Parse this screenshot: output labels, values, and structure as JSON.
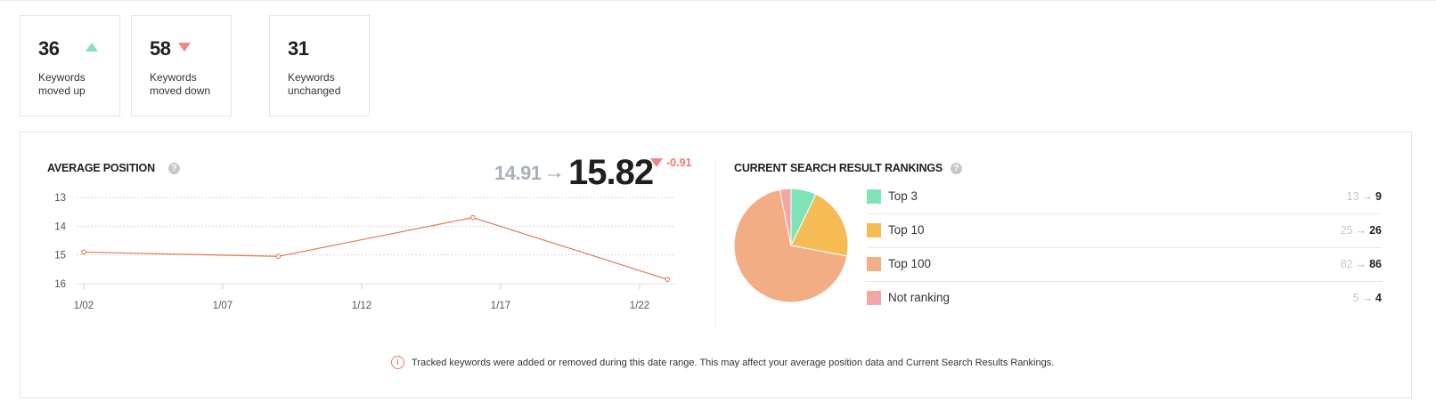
{
  "summary_cards": [
    {
      "value": "36",
      "label": "Keywords moved up",
      "trend": "up",
      "trend_icon": "triangle-up-icon",
      "color": "#7fe3b8"
    },
    {
      "value": "58",
      "label": "Keywords moved down",
      "trend": "down",
      "trend_icon": "triangle-down-icon",
      "color": "#f08585"
    },
    {
      "value": "31",
      "label": "Keywords unchanged",
      "trend": "none"
    }
  ],
  "average_position": {
    "title": "AVERAGE POSITION",
    "help_icon": "question-circle-icon",
    "previous": "14.91",
    "arrow": "→",
    "current": "15.82",
    "delta": "-0.91",
    "delta_icon": "triangle-down-icon",
    "delta_color": "#f07373"
  },
  "chart_data": {
    "type": "line",
    "title": "AVERAGE POSITION",
    "xlabel": "",
    "ylabel": "",
    "x_ticks": [
      "1/02",
      "1/07",
      "1/12",
      "1/17",
      "1/22"
    ],
    "y_ticks": [
      "13",
      "14",
      "15",
      "16"
    ],
    "ylim": [
      16,
      13
    ],
    "y_inverted": true,
    "grid": true,
    "series": [
      {
        "x": [
          "1/02",
          "1/09",
          "1/16",
          "1/23"
        ],
        "values": [
          14.9,
          15.05,
          13.7,
          15.85
        ],
        "color": "#e07a4f"
      }
    ]
  },
  "rankings": {
    "title": "CURRENT SEARCH RESULT RANKINGS",
    "help_icon": "question-circle-icon",
    "pie": [
      {
        "name": "Top 3",
        "value": 9,
        "color": "#7fe3b8"
      },
      {
        "name": "Top 10",
        "value": 26,
        "color": "#f5bb55"
      },
      {
        "name": "Top 100",
        "value": 86,
        "color": "#f2ad85"
      },
      {
        "name": "Not ranking",
        "value": 4,
        "color": "#f2a7a5"
      }
    ],
    "rows": [
      {
        "label": "Top 3",
        "from": "13",
        "arrow": "→",
        "to": "9",
        "color": "#7fe3b8"
      },
      {
        "label": "Top 10",
        "from": "25",
        "arrow": "→",
        "to": "26",
        "color": "#f5bb55"
      },
      {
        "label": "Top 100",
        "from": "82",
        "arrow": "→",
        "to": "86",
        "color": "#f2ad85"
      },
      {
        "label": "Not ranking",
        "from": "5",
        "arrow": "→",
        "to": "4",
        "color": "#f2a7a5"
      }
    ]
  },
  "notice": {
    "icon": "info-circle-icon",
    "text": "Tracked keywords were added or removed during this date range. This may affect your average position data and Current Search Results Rankings."
  }
}
